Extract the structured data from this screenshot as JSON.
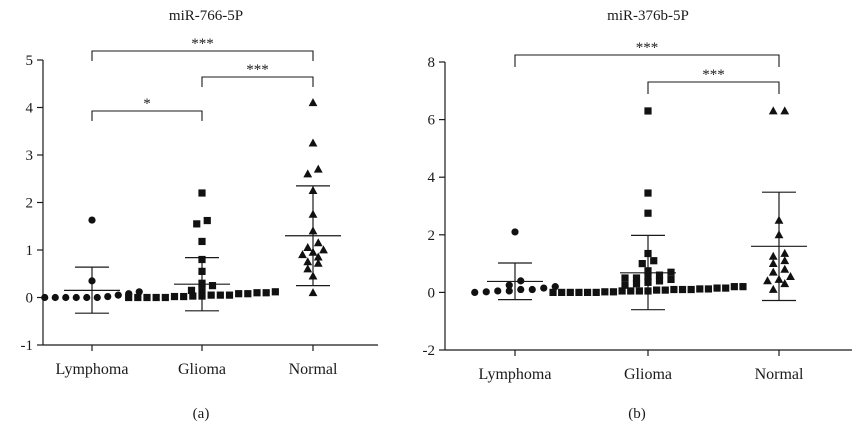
{
  "chart_data": [
    {
      "type": "scatter",
      "panel_label": "(a)",
      "title": "miR-766-5P",
      "categories": [
        "Lymphoma",
        "Glioma",
        "Normal"
      ],
      "ylim": [
        -1,
        5
      ],
      "yticks": [
        "-1",
        "0",
        "1",
        "2",
        "3",
        "4",
        "5"
      ],
      "markers": [
        "circle",
        "square",
        "triangle"
      ],
      "series": [
        {
          "values": [
            0.0,
            0.0,
            0.0,
            0.0,
            0.0,
            0.0,
            0.02,
            0.05,
            0.08,
            0.12,
            0.35,
            1.63
          ],
          "mean": 0.15,
          "sd_low": -0.33,
          "sd_high": 0.64
        },
        {
          "values": [
            0.0,
            0.0,
            0.0,
            0.0,
            0.0,
            0.02,
            0.02,
            0.03,
            0.03,
            0.05,
            0.05,
            0.05,
            0.08,
            0.08,
            0.1,
            0.1,
            0.12,
            0.15,
            0.18,
            0.25,
            0.3,
            0.55,
            0.8,
            1.18,
            1.55,
            1.62,
            2.2
          ],
          "mean": 0.28,
          "sd_low": -0.28,
          "sd_high": 0.84
        },
        {
          "values": [
            0.1,
            0.45,
            0.6,
            0.72,
            0.75,
            0.85,
            0.9,
            0.95,
            1.0,
            1.05,
            1.15,
            1.4,
            1.75,
            2.25,
            2.6,
            2.7,
            3.25,
            4.1
          ],
          "mean": 1.3,
          "sd_low": 0.25,
          "sd_high": 2.35
        }
      ],
      "significance": [
        {
          "from": "Lymphoma",
          "to": "Normal",
          "label": "***"
        },
        {
          "from": "Glioma",
          "to": "Normal",
          "label": "***"
        },
        {
          "from": "Lymphoma",
          "to": "Glioma",
          "label": "*"
        }
      ]
    },
    {
      "type": "scatter",
      "panel_label": "(b)",
      "title": "miR-376b-5P",
      "categories": [
        "Lymphoma",
        "Glioma",
        "Normal"
      ],
      "ylim": [
        -2,
        8
      ],
      "yticks": [
        "-2",
        "0",
        "2",
        "4",
        "6",
        "8"
      ],
      "markers": [
        "circle",
        "square",
        "triangle"
      ],
      "series": [
        {
          "values": [
            0.0,
            0.02,
            0.05,
            0.05,
            0.1,
            0.1,
            0.15,
            0.2,
            0.25,
            0.4,
            2.1
          ],
          "mean": 0.38,
          "sd_low": -0.25,
          "sd_high": 1.02
        },
        {
          "values": [
            0.0,
            0.0,
            0.0,
            0.0,
            0.0,
            0.0,
            0.02,
            0.02,
            0.05,
            0.05,
            0.05,
            0.05,
            0.08,
            0.08,
            0.1,
            0.1,
            0.1,
            0.12,
            0.12,
            0.15,
            0.15,
            0.2,
            0.2,
            0.25,
            0.3,
            0.35,
            0.4,
            0.45,
            0.5,
            0.5,
            0.55,
            0.6,
            0.7,
            0.75,
            1.0,
            1.1,
            1.35,
            2.75,
            3.45,
            6.3
          ],
          "mean": 0.68,
          "sd_low": -0.6,
          "sd_high": 1.98
        },
        {
          "values": [
            0.1,
            0.3,
            0.4,
            0.45,
            0.55,
            0.7,
            0.8,
            1.0,
            1.1,
            1.25,
            1.35,
            2.0,
            2.5,
            6.3,
            6.3
          ],
          "mean": 1.6,
          "sd_low": -0.28,
          "sd_high": 3.48
        }
      ],
      "significance": [
        {
          "from": "Lymphoma",
          "to": "Normal",
          "label": "***"
        },
        {
          "from": "Glioma",
          "to": "Normal",
          "label": "***"
        }
      ]
    }
  ]
}
